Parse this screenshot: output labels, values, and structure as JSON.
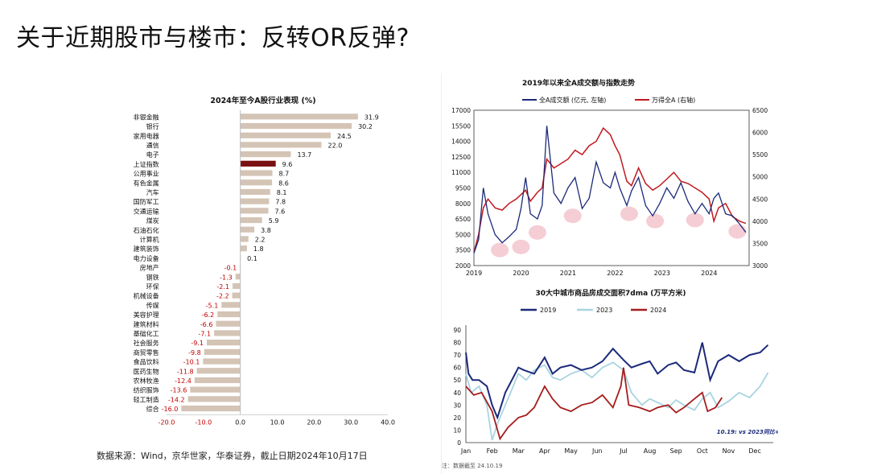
{
  "title": "关于近期股市与楼市：反转OR反弹?",
  "source": "数据来源：Wind，京华世家，华泰证券，截止日期2024年10月17日",
  "colors": {
    "bar": "#d4c4b5",
    "highlight": "#7a1012",
    "neg_label": "#c00000",
    "navy": "#1b2a7a",
    "red": "#c0191f",
    "light_blue": "#a8d4e0",
    "dark_red": "#a51d1d",
    "circle": "#f3c4cc"
  },
  "chart_data": [
    {
      "type": "bar",
      "orientation": "horizontal",
      "title": "2024年至今A股行业表现 (%)",
      "categories": [
        "非银金融",
        "银行",
        "家用电器",
        "通信",
        "电子",
        "上证指数",
        "公用事业",
        "有色金属",
        "汽车",
        "国防军工",
        "交通运输",
        "煤炭",
        "石油石化",
        "计算机",
        "建筑装饰",
        "电力设备",
        "房地产",
        "钢铁",
        "环保",
        "机械设备",
        "传媒",
        "美容护理",
        "建筑材料",
        "基础化工",
        "社会服务",
        "商贸零售",
        "食品饮料",
        "医药生物",
        "农林牧渔",
        "纺织服饰",
        "轻工制造",
        "综合"
      ],
      "values": [
        31.9,
        30.2,
        24.5,
        22.0,
        13.7,
        9.6,
        8.7,
        8.6,
        8.1,
        7.8,
        7.6,
        5.9,
        3.8,
        2.2,
        1.8,
        0.1,
        -0.1,
        -1.3,
        -2.1,
        -2.2,
        -5.1,
        -6.2,
        -6.6,
        -7.1,
        -9.1,
        -9.8,
        -10.1,
        -11.8,
        -12.4,
        -13.6,
        -14.2,
        -16.0
      ],
      "value_labels": [
        "31.9",
        "30.2",
        "24.5",
        "22.0",
        "13.7",
        "9.6",
        "8.7",
        "8.6",
        "8.1",
        "7.8",
        "7.6",
        "5.9",
        "3.8",
        "2.2",
        "1.8",
        "0.1",
        "-0.1",
        "-1.3",
        "-2.1",
        "-2.2",
        "-5.1",
        "-6.2",
        "-6.6",
        "-7.1",
        "-9.1",
        "-9.8",
        "-10.1",
        "-11.8",
        "-12.4",
        "-13.6",
        "-14.2",
        "-16.0"
      ],
      "highlight": "上证指数",
      "xlim": [
        -20,
        40
      ],
      "xticks": [
        "-20.0",
        "-10.0",
        "0.0",
        "10.0",
        "20.0",
        "30.0",
        "40.0"
      ]
    },
    {
      "type": "line",
      "title": "2019年以来全A成交额与指数走势",
      "series": [
        {
          "name": "全A成交额 (亿元, 左轴)",
          "axis": "left",
          "x": [
            2019.0,
            2019.1,
            2019.2,
            2019.3,
            2019.45,
            2019.6,
            2019.75,
            2019.9,
            2020.0,
            2020.1,
            2020.2,
            2020.35,
            2020.45,
            2020.55,
            2020.7,
            2020.85,
            2021.0,
            2021.15,
            2021.3,
            2021.45,
            2021.6,
            2021.75,
            2021.9,
            2022.0,
            2022.1,
            2022.25,
            2022.35,
            2022.5,
            2022.65,
            2022.8,
            2022.95,
            2023.1,
            2023.25,
            2023.4,
            2023.55,
            2023.7,
            2023.85,
            2024.0,
            2024.1,
            2024.2,
            2024.35,
            2024.5,
            2024.65,
            2024.78
          ],
          "y": [
            3200,
            4500,
            9500,
            7000,
            5000,
            4200,
            4800,
            5500,
            7500,
            10500,
            7000,
            6500,
            7800,
            15500,
            9000,
            8000,
            9500,
            10500,
            7500,
            8500,
            12000,
            10000,
            9500,
            11000,
            9500,
            7800,
            9200,
            10500,
            7800,
            6800,
            8000,
            9500,
            8500,
            10000,
            8200,
            7000,
            8000,
            7000,
            8500,
            9000,
            7000,
            6800,
            6000,
            5200
          ]
        },
        {
          "name": "万得全A (右轴)",
          "axis": "right",
          "x": [
            2019.0,
            2019.1,
            2019.2,
            2019.3,
            2019.45,
            2019.6,
            2019.75,
            2019.9,
            2020.0,
            2020.1,
            2020.2,
            2020.35,
            2020.45,
            2020.55,
            2020.7,
            2020.85,
            2021.0,
            2021.15,
            2021.3,
            2021.45,
            2021.6,
            2021.75,
            2021.9,
            2022.0,
            2022.1,
            2022.25,
            2022.35,
            2022.5,
            2022.65,
            2022.8,
            2022.95,
            2023.1,
            2023.25,
            2023.4,
            2023.55,
            2023.7,
            2023.85,
            2024.0,
            2024.1,
            2024.2,
            2024.35,
            2024.5,
            2024.65,
            2024.78
          ],
          "y": [
            3300,
            3700,
            4300,
            4500,
            4300,
            4250,
            4400,
            4500,
            4600,
            4700,
            4450,
            4650,
            4750,
            5400,
            5200,
            5300,
            5400,
            5600,
            5500,
            5700,
            5800,
            6100,
            5950,
            5700,
            5500,
            4900,
            4800,
            5200,
            4850,
            4700,
            4800,
            4950,
            5100,
            4900,
            4850,
            4750,
            4650,
            4500,
            4000,
            4300,
            4400,
            4100,
            4000,
            3950
          ]
        }
      ],
      "highlight_years": [
        "2019",
        "2020",
        "2021",
        "2022",
        "2023",
        "2024"
      ],
      "x_ticks": [
        "2019",
        "2020",
        "2021",
        "2022",
        "2023",
        "2024"
      ],
      "left_ticks": [
        "2000",
        "3500",
        "5000",
        "6500",
        "8000",
        "9500",
        "11000",
        "12500",
        "14000",
        "15500",
        "17000"
      ],
      "right_ticks": [
        "3000",
        "3500",
        "4000",
        "4500",
        "5000",
        "5500",
        "6000",
        "6500"
      ],
      "ylim_left": [
        2000,
        17000
      ],
      "ylim_right": [
        3000,
        6500
      ],
      "xlim": [
        2019,
        2024.85
      ],
      "troughs_left": [
        [
          2019.55,
          3500
        ],
        [
          2020.0,
          3800
        ],
        [
          2020.35,
          5200
        ],
        [
          2021.1,
          6800
        ],
        [
          2022.3,
          7000
        ],
        [
          2022.85,
          6300
        ],
        [
          2023.7,
          6400
        ],
        [
          2024.6,
          5300
        ]
      ]
    },
    {
      "type": "line",
      "title": "30大中城市商品房成交面积7dma (万平方米)",
      "categories": [
        "Jan",
        "Feb",
        "Mar",
        "Apr",
        "May",
        "Jun",
        "Jul",
        "Aug",
        "Sep",
        "Oct",
        "Nov",
        "Dec"
      ],
      "ylim": [
        0,
        90
      ],
      "yticks": [
        "0",
        "10",
        "20",
        "30",
        "40",
        "50",
        "60",
        "70",
        "80",
        "90"
      ],
      "annotation": "10.19: vs 2023同比+4%",
      "series": [
        {
          "name": "2019",
          "x": [
            0,
            0.1,
            0.25,
            0.5,
            0.8,
            1.0,
            1.2,
            1.5,
            1.8,
            2.0,
            2.2,
            2.6,
            3.0,
            3.3,
            3.6,
            4.0,
            4.4,
            4.8,
            5.2,
            5.6,
            6.0,
            6.3,
            6.7,
            7.0,
            7.3,
            7.7,
            8.0,
            8.3,
            8.7,
            9.0,
            9.3,
            9.6,
            10.0,
            10.4,
            10.8,
            11.2,
            11.5
          ],
          "y": [
            72,
            55,
            50,
            50,
            45,
            30,
            20,
            40,
            52,
            60,
            58,
            55,
            68,
            55,
            60,
            62,
            58,
            60,
            65,
            75,
            66,
            60,
            63,
            65,
            55,
            62,
            64,
            58,
            56,
            80,
            50,
            65,
            70,
            65,
            70,
            72,
            78
          ]
        },
        {
          "name": "2023",
          "x": [
            0,
            0.2,
            0.5,
            0.8,
            1.0,
            1.2,
            1.5,
            1.8,
            2.0,
            2.3,
            2.6,
            3.0,
            3.3,
            3.6,
            4.0,
            4.4,
            4.8,
            5.2,
            5.6,
            6.0,
            6.3,
            6.7,
            7.0,
            7.3,
            7.7,
            8.0,
            8.3,
            8.7,
            9.0,
            9.3,
            9.6,
            10.0,
            10.4,
            10.8,
            11.2,
            11.5
          ],
          "y": [
            55,
            40,
            45,
            30,
            2,
            15,
            30,
            45,
            55,
            50,
            58,
            62,
            52,
            50,
            55,
            58,
            52,
            60,
            64,
            58,
            40,
            30,
            35,
            32,
            28,
            34,
            30,
            26,
            35,
            40,
            28,
            33,
            40,
            36,
            45,
            56
          ]
        },
        {
          "name": "2024",
          "x": [
            0,
            0.3,
            0.6,
            1.0,
            1.3,
            1.6,
            2.0,
            2.3,
            2.6,
            3.0,
            3.3,
            3.6,
            4.0,
            4.4,
            4.8,
            5.2,
            5.6,
            5.9,
            6.0,
            6.2,
            6.6,
            7.0,
            7.3,
            7.7,
            8.0,
            8.3,
            8.7,
            9.0,
            9.2,
            9.5,
            9.75
          ],
          "y": [
            45,
            38,
            40,
            25,
            3,
            12,
            20,
            22,
            28,
            45,
            35,
            28,
            25,
            30,
            32,
            38,
            28,
            45,
            60,
            30,
            28,
            25,
            28,
            30,
            24,
            28,
            35,
            40,
            25,
            28,
            36
          ]
        }
      ]
    }
  ],
  "footnote": "注：数据截至 24.10.19"
}
